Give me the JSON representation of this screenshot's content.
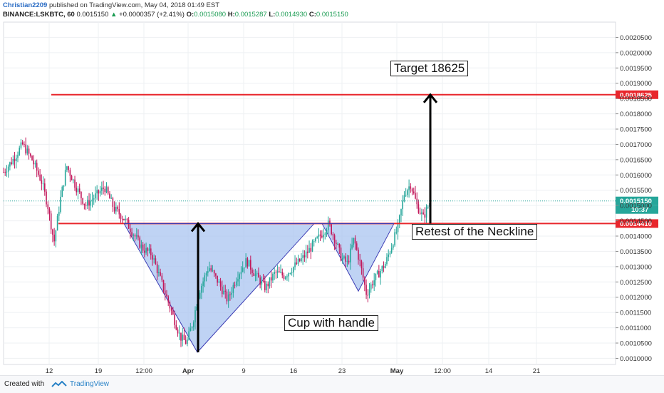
{
  "header": {
    "author": "Christian2209",
    "published": "published on TradingView.com, May 04, 2018 01:49 EST",
    "symbol": "BINANCE:LSKBTC, 60",
    "last": "0.0015150",
    "change_arrow": "▲",
    "change": "+0.0000357 (+2.41%)",
    "o_label": "O:",
    "o_value": "0.0015080",
    "h_label": "H:",
    "h_value": "0.0015287",
    "l_label": "L:",
    "l_value": "0.0014930",
    "c_label": "C:",
    "c_value": "0.0015150"
  },
  "footer": {
    "created_with": "Created with",
    "brand": "TradingView"
  },
  "colors": {
    "up": "#26a69a",
    "down": "#c2185b",
    "pattern_fill": "#a9c4f0",
    "pattern_stroke": "#3c3cb4",
    "red": "#e8262c",
    "green_label": "#26a69a",
    "arrow": "#000000"
  },
  "chart_data": {
    "type": "candlestick",
    "y_axis": {
      "min": 0.00098,
      "max": 0.0021,
      "ticks": [
        "0.0020500",
        "0.0020000",
        "0.0019500",
        "0.0019000",
        "0.0018500",
        "0.0018000",
        "0.0017500",
        "0.0017000",
        "0.0016500",
        "0.0016000",
        "0.0015500",
        "0.0015000",
        "0.0014500",
        "0.0014000",
        "0.0013500",
        "0.0013000",
        "0.0012500",
        "0.0012000",
        "0.0011500",
        "0.0011000",
        "0.0010500",
        "0.0010000"
      ]
    },
    "x_axis": {
      "ticks": [
        "12",
        "19",
        "12:00",
        "Apr",
        "9",
        "16",
        "23",
        "May",
        "12:00",
        "14",
        "21"
      ],
      "bold": [
        "Apr",
        "May"
      ]
    },
    "price_path": [
      [
        0,
        0.00161
      ],
      [
        3,
        0.00165
      ],
      [
        6,
        0.0017
      ],
      [
        9,
        0.00165
      ],
      [
        12,
        0.00158
      ],
      [
        14,
        0.0015
      ],
      [
        16,
        0.00138
      ],
      [
        18,
        0.00152
      ],
      [
        20,
        0.00163
      ],
      [
        23,
        0.00156
      ],
      [
        26,
        0.0015
      ],
      [
        29,
        0.00153
      ],
      [
        32,
        0.00156
      ],
      [
        35,
        0.00149
      ],
      [
        38,
        0.00146
      ],
      [
        41,
        0.00141
      ],
      [
        44,
        0.00136
      ],
      [
        47,
        0.00134
      ],
      [
        50,
        0.00125
      ],
      [
        53,
        0.00116
      ],
      [
        56,
        0.00107
      ],
      [
        58,
        0.00105
      ],
      [
        60,
        0.00112
      ],
      [
        62,
        0.00122
      ],
      [
        65,
        0.0013
      ],
      [
        68,
        0.00125
      ],
      [
        71,
        0.00119
      ],
      [
        74,
        0.00127
      ],
      [
        77,
        0.00132
      ],
      [
        80,
        0.00127
      ],
      [
        83,
        0.00123
      ],
      [
        86,
        0.00128
      ],
      [
        89,
        0.00127
      ],
      [
        92,
        0.0013
      ],
      [
        95,
        0.00133
      ],
      [
        98,
        0.00137
      ],
      [
        101,
        0.00141
      ],
      [
        103,
        0.00144
      ],
      [
        105,
        0.00139
      ],
      [
        107,
        0.00133
      ],
      [
        109,
        0.00131
      ],
      [
        111,
        0.00139
      ],
      [
        113,
        0.00131
      ],
      [
        115,
        0.00121
      ],
      [
        117,
        0.00125
      ],
      [
        119,
        0.00128
      ],
      [
        121,
        0.00131
      ],
      [
        123,
        0.00137
      ],
      [
        125,
        0.00143
      ],
      [
        127,
        0.00154
      ],
      [
        129,
        0.00157
      ],
      [
        131,
        0.0015
      ],
      [
        133,
        0.00146
      ],
      [
        135,
        0.00151
      ]
    ],
    "current_price": "0.0015150",
    "current_time": "10:37",
    "levels": [
      {
        "name": "target",
        "value": 0.0018625,
        "label": "0.0018625"
      },
      {
        "name": "neckline",
        "value": 0.001441,
        "label": "0.0014410"
      }
    ],
    "annotations": {
      "target": "Target 18625",
      "pattern": "Cup with handle",
      "retest": "Retest of the Neckline"
    }
  }
}
